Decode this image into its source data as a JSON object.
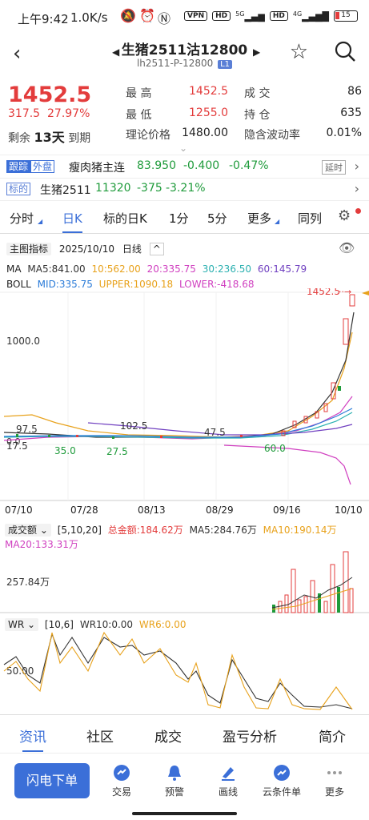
{
  "status_bar": {
    "time": "上午9:42",
    "speed": "1.0K/s",
    "vpn": "VPN",
    "hd1": "HD",
    "net1": "5G",
    "hd2": "HD",
    "net2": "4G",
    "battery": "15"
  },
  "header": {
    "title": "生猪2511沽12800",
    "subtitle": "lh2511-P-12800",
    "level_tag": "L1"
  },
  "quote": {
    "price": "1452.5",
    "change": "317.5",
    "change_pct": "27.97%",
    "remain_label": "剩余",
    "remain_days": "13天",
    "remain_suffix": "到期",
    "high_label": "最  高",
    "high": "1452.5",
    "low_label": "最  低",
    "low": "1255.0",
    "theory_label": "理论价格",
    "theory": "1480.00",
    "volume_label": "成  交",
    "volume": "86",
    "oi_label": "持  仓",
    "oi": "635",
    "iv_label": "隐含波动率",
    "iv": "0.01%"
  },
  "linked": {
    "track_badge": "跟踪",
    "outer_label": "外盘",
    "outer_name": "瘦肉猪主连",
    "outer_price": "83.950",
    "outer_chg": "-0.400",
    "outer_pct": "-0.47%",
    "delay_tag": "延时",
    "underlying_badge": "标的",
    "underlying_name": "生猪2511",
    "underlying_price": "11320",
    "underlying_chg": "-375",
    "underlying_pct": "-3.21%"
  },
  "tabs": [
    "分时",
    "日K",
    "标的日K",
    "1分",
    "5分",
    "更多",
    "同列"
  ],
  "chart_header": {
    "indicator_btn": "主图指标",
    "date": "2025/10/10",
    "period": "日线"
  },
  "ma_line": {
    "label": "MA",
    "ma5": "MA5:841.00",
    "ma10": "10:562.00",
    "ma20": "20:335.75",
    "ma30": "30:236.50",
    "ma60": "60:145.79"
  },
  "boll_line": {
    "label": "BOLL",
    "mid": "MID:335.75",
    "upper": "UPPER:1090.18",
    "lower": "LOWER:-418.68"
  },
  "price_chart": {
    "y_label_1000": "1000.0",
    "y_label_0": "0.0",
    "last_label": "1452.5",
    "annotations": [
      "97.5",
      "102.5",
      "47.5",
      "17.5",
      "35.0",
      "27.5",
      "60.0"
    ]
  },
  "x_axis": [
    "07/10",
    "07/28",
    "08/13",
    "08/29",
    "09/16",
    "10/10"
  ],
  "volume_header": {
    "label": "成交额",
    "params": "[5,10,20]",
    "total": "总金额:184.62万",
    "ma5": "MA5:284.76万",
    "ma10": "MA10:190.14万",
    "ma20": "MA20:133.31万",
    "axis": "257.84万"
  },
  "wr_header": {
    "label": "WR",
    "params": "[10,6]",
    "wr10": "WR10:0.00",
    "wr6": "WR6:0.00",
    "axis": "50.00"
  },
  "bottom_tabs": [
    "资讯",
    "社区",
    "成交",
    "盈亏分析",
    "简介"
  ],
  "actions": {
    "main": "闪电下单",
    "items": [
      "交易",
      "预警",
      "画线",
      "云条件单",
      "更多"
    ]
  },
  "colors": {
    "accent": "#3b6fd8",
    "up": "#e33c3c",
    "down": "#1f9b3b",
    "ma5": "#333333",
    "ma10": "#e8a21c",
    "ma20": "#d040c0",
    "ma30": "#2ab0b0",
    "ma60": "#7040c0"
  }
}
